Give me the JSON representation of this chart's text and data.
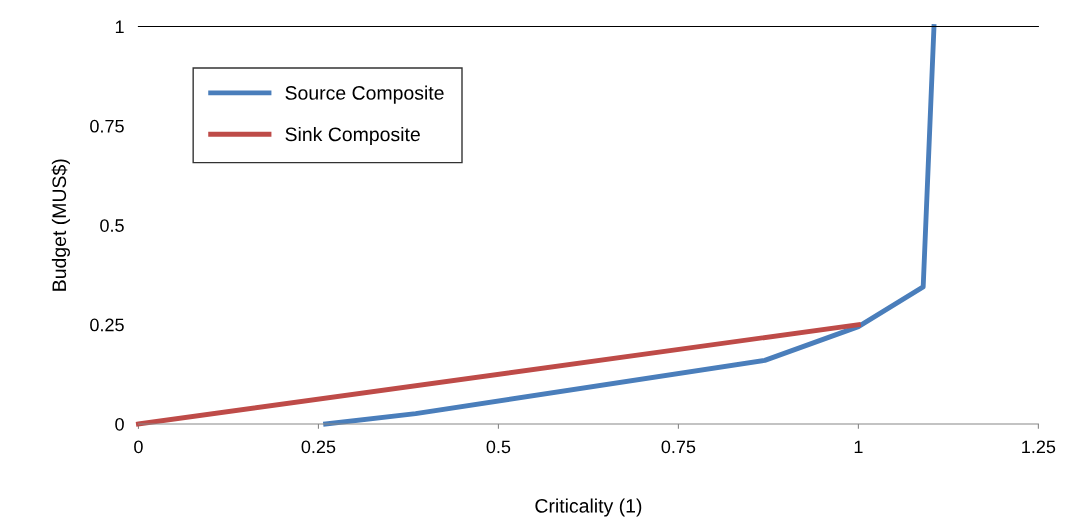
{
  "chart_data": {
    "type": "line",
    "xlabel": "Criticality (1)",
    "ylabel": "Budget (MUS$)",
    "xlim": [
      0,
      1.25
    ],
    "xticks": [
      0,
      0.25,
      0.5,
      0.75,
      1,
      1.25
    ],
    "ylim": [
      0,
      1
    ],
    "yticks": [
      0,
      0.25,
      0.5,
      0.75,
      1
    ],
    "grid": false,
    "legend": "top left",
    "marker": "none",
    "line_style": "solid",
    "series": [
      {
        "name": "Source Composite",
        "color": "#4a7ebb",
        "x": [
          0.26,
          0.385,
          0.87,
          1.0,
          1.09,
          1.105
        ],
        "values": [
          0,
          0.026,
          0.16,
          0.245,
          0.345,
          1
        ]
      },
      {
        "name": "Sink Composite",
        "color": "#be4b48",
        "x": [
          0,
          1.0
        ],
        "values": [
          0,
          0.25
        ]
      }
    ]
  }
}
